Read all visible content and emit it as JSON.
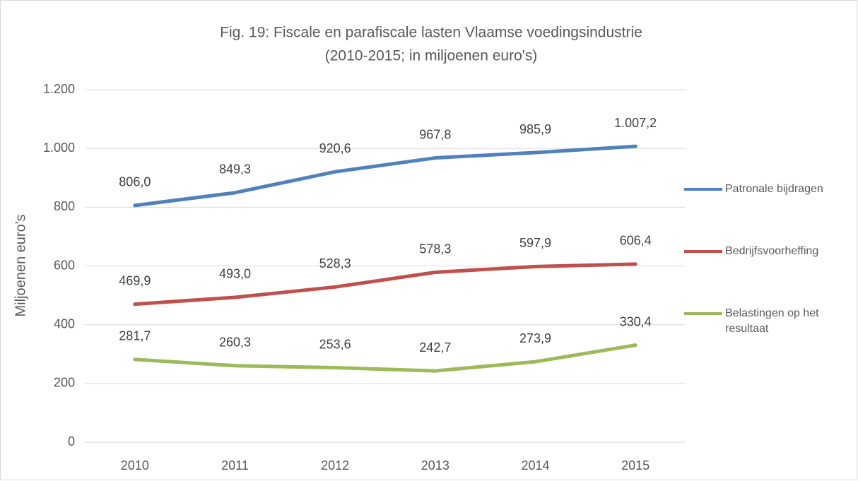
{
  "chart_data": {
    "type": "line",
    "title": "Fig. 19: Fiscale en parafiscale lasten Vlaamse voedingsindustrie",
    "subtitle": "(2010-2015; in miljoenen euro's)",
    "y_label": "Miljoenen euro's",
    "categories": [
      "2010",
      "2011",
      "2012",
      "2013",
      "2014",
      "2015"
    ],
    "series": [
      {
        "name": "Patronale bijdragen",
        "color": "#4f81bd",
        "values": [
          806.0,
          849.3,
          920.6,
          967.8,
          985.9,
          1007.2
        ],
        "value_labels": [
          "806,0",
          "849,3",
          "920,6",
          "967,8",
          "985,9",
          "1.007,2"
        ]
      },
      {
        "name": "Bedrijfsvoorheffing",
        "color": "#c0504d",
        "values": [
          469.9,
          493.0,
          528.3,
          578.3,
          597.9,
          606.4
        ],
        "value_labels": [
          "469,9",
          "493,0",
          "528,3",
          "578,3",
          "597,9",
          "606,4"
        ]
      },
      {
        "name": "Belastingen op het resultaat",
        "color": "#9bbb59",
        "values": [
          281.7,
          260.3,
          253.6,
          242.7,
          273.9,
          330.4
        ],
        "value_labels": [
          "281,7",
          "260,3",
          "253,6",
          "242,7",
          "273,9",
          "330,4"
        ]
      }
    ],
    "ylim": [
      0,
      1200
    ],
    "yticks": [
      0,
      200,
      400,
      600,
      800,
      {
        "value": 1000,
        "label": "1.000"
      },
      {
        "value": 1200,
        "label": "1.200"
      }
    ],
    "grid": true,
    "legend": "right"
  }
}
